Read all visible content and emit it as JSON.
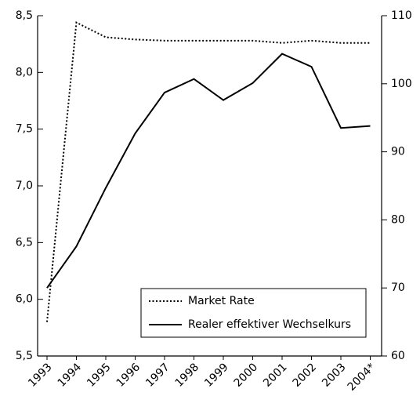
{
  "chart_data": {
    "type": "line",
    "categories": [
      "1993",
      "1994",
      "1995",
      "1996",
      "1997",
      "1998",
      "1999",
      "2000",
      "2001",
      "2002",
      "2003",
      "2004*"
    ],
    "series": [
      {
        "name": "Market Rate",
        "color": "#000000",
        "linestyle": "dotted",
        "axis": "y",
        "values": [
          5.8,
          8.44,
          8.31,
          8.29,
          8.28,
          8.28,
          8.28,
          8.28,
          8.26,
          8.28,
          8.26,
          8.26
        ]
      },
      {
        "name": "Realer effektiver Wechselkurs",
        "color": "#000000",
        "linestyle": "solid",
        "axis": "y2",
        "values": [
          70.0,
          76.1,
          84.7,
          92.7,
          98.7,
          100.7,
          97.6,
          100.1,
          104.4,
          102.5,
          93.5,
          93.8
        ]
      }
    ],
    "ylim": [
      5.5,
      8.5
    ],
    "yticks": [
      {
        "value": 5.5,
        "label": "5,5"
      },
      {
        "value": 6.0,
        "label": "6,0"
      },
      {
        "value": 6.5,
        "label": "6,5"
      },
      {
        "value": 7.0,
        "label": "7,0"
      },
      {
        "value": 7.5,
        "label": "7,5"
      },
      {
        "value": 8.0,
        "label": "8,0"
      },
      {
        "value": 8.5,
        "label": "8,5"
      }
    ],
    "y2lim": [
      60,
      110
    ],
    "y2ticks": [
      60,
      70,
      80,
      90,
      100,
      110
    ],
    "legend": "lower right"
  }
}
